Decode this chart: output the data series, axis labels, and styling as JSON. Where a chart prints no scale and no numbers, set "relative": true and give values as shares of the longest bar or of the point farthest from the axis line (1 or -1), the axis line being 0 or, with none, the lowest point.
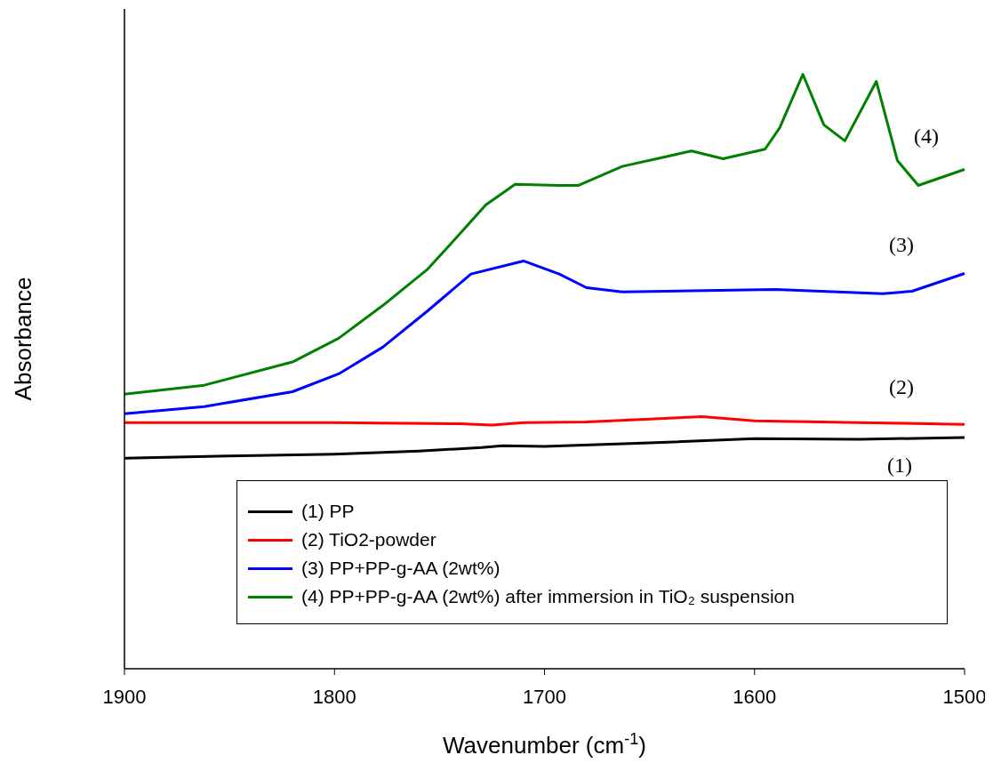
{
  "chart_data": {
    "type": "line",
    "xlabel": "Wavenumber (cm$^{-1}$)",
    "ylabel": "Absorbance",
    "relative": true,
    "xlim": [
      1900,
      1500
    ],
    "xticks": [
      1900,
      1800,
      1700,
      1600,
      1500
    ],
    "legend": "bottom",
    "grid": false,
    "marker": "none",
    "line_style": "solid",
    "series": [
      {
        "name": "(1) PP",
        "color": "#000000",
        "x": [
          1900,
          1850,
          1800,
          1760,
          1730,
          1720,
          1700,
          1650,
          1600,
          1550,
          1500
        ],
        "values": [
          0.354,
          0.358,
          0.361,
          0.366,
          0.372,
          0.375,
          0.374,
          0.38,
          0.387,
          0.386,
          0.389
        ]
      },
      {
        "name": "(2) TiO2-powder",
        "color": "#ff0000",
        "x": [
          1900,
          1800,
          1740,
          1725,
          1710,
          1680,
          1625,
          1600,
          1550,
          1500
        ],
        "values": [
          0.414,
          0.414,
          0.412,
          0.41,
          0.414,
          0.415,
          0.424,
          0.417,
          0.414,
          0.411
        ]
      },
      {
        "name": "(3) PP+PP-g-AA (2wt%)",
        "color": "#0000ff",
        "x": [
          1900,
          1862,
          1820,
          1798,
          1777,
          1756,
          1735,
          1710,
          1693,
          1680,
          1663,
          1590,
          1539,
          1525,
          1500
        ],
        "values": [
          0.429,
          0.441,
          0.466,
          0.496,
          0.541,
          0.601,
          0.664,
          0.686,
          0.664,
          0.641,
          0.634,
          0.638,
          0.631,
          0.635,
          0.665
        ]
      },
      {
        "name": "(4) PP+PP-g-AA (2wt%) after immersion in TiO₂ suspension",
        "color": "#008000",
        "x": [
          1900,
          1862,
          1820,
          1798,
          1777,
          1756,
          1742,
          1728,
          1714,
          1693,
          1684,
          1663,
          1630,
          1615,
          1595,
          1588,
          1577,
          1567,
          1557,
          1542,
          1532,
          1522,
          1500
        ],
        "values": [
          0.462,
          0.477,
          0.516,
          0.556,
          0.611,
          0.671,
          0.725,
          0.78,
          0.815,
          0.813,
          0.813,
          0.845,
          0.871,
          0.858,
          0.874,
          0.91,
          1.0,
          0.915,
          0.888,
          0.988,
          0.855,
          0.813,
          0.84
        ]
      }
    ],
    "annotations": [
      "(1)",
      "(2)",
      "(3)",
      "(4)"
    ]
  }
}
